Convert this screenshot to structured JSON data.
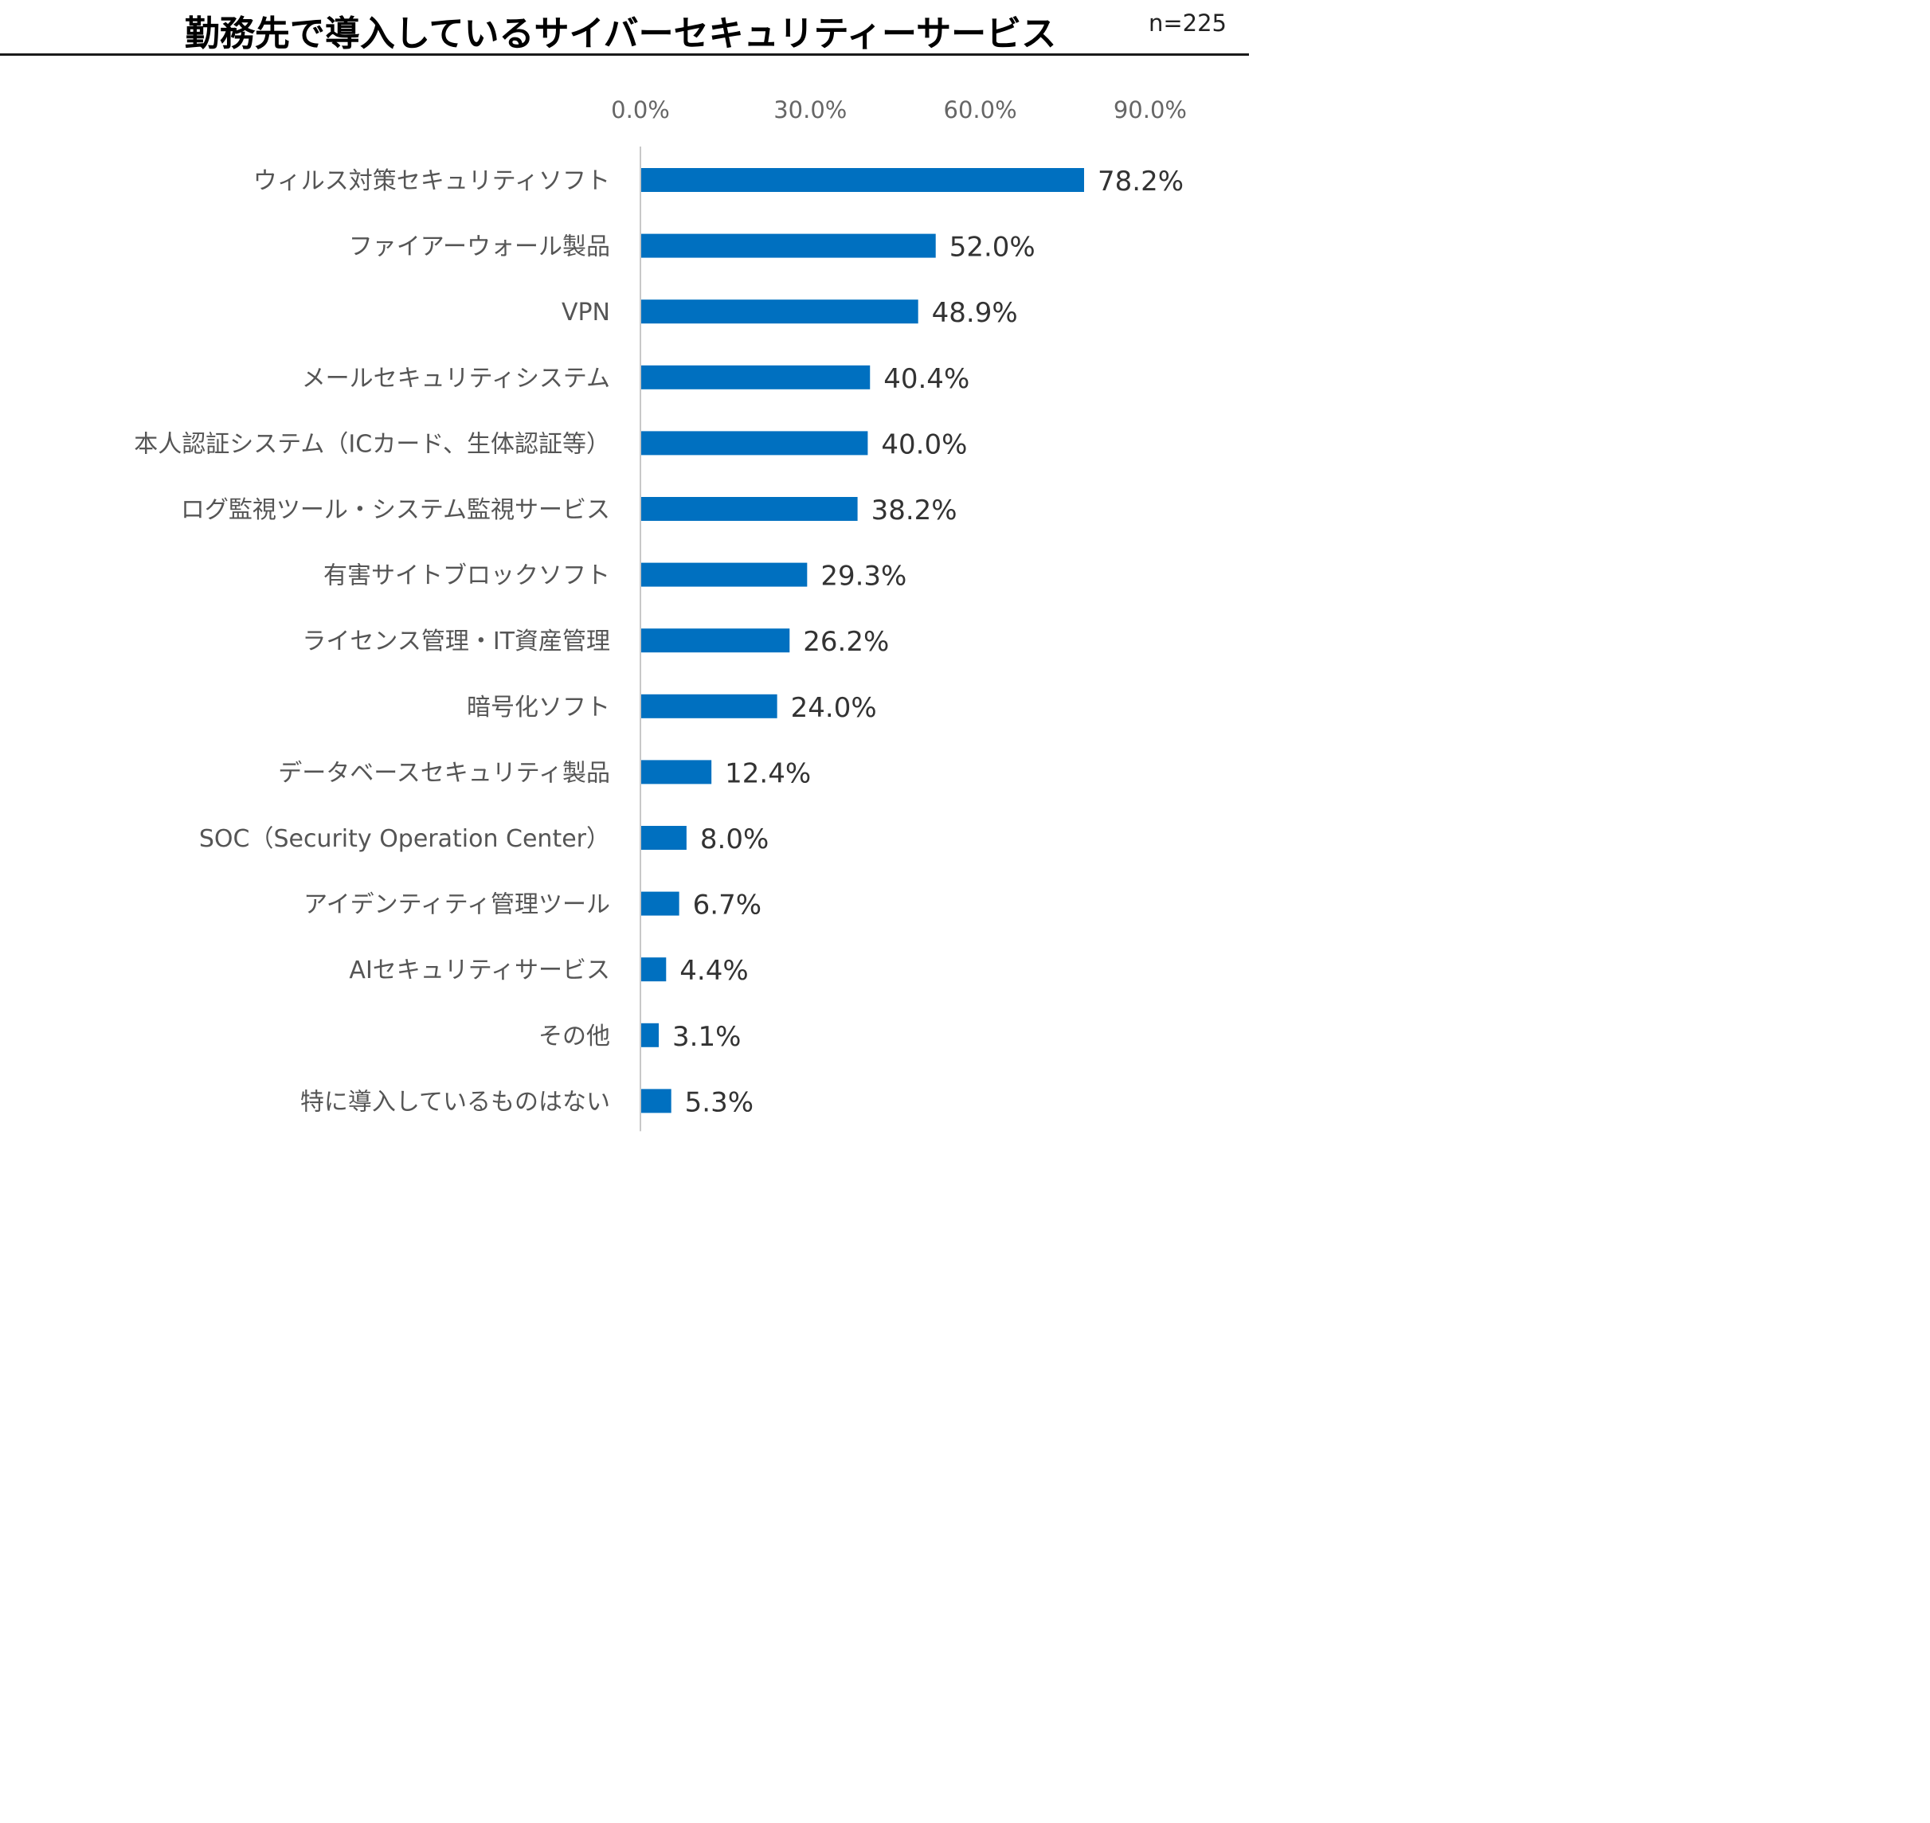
{
  "title": "勤務先で導入しているサイバーセキュリティーサービス",
  "sample_size": "n=225",
  "chart_data": {
    "type": "bar",
    "orientation": "horizontal",
    "title": "勤務先で導入しているサイバーセキュリティーサービス",
    "categories": [
      "ウィルス対策セキュリティソフト",
      "ファイアーウォール製品",
      "VPN",
      "メールセキュリティシステム",
      "本人認証システム（ICカード、生体認証等）",
      "ログ監視ツール・システム監視サービス",
      "有害サイトブロックソフト",
      "ライセンス管理・IT資産管理",
      "暗号化ソフト",
      "データベースセキュリティ製品",
      "SOC（Security Operation Center）",
      "アイデンティティ管理ツール",
      "AIセキュリティサービス",
      "その他",
      "特に導入しているものはない"
    ],
    "values": [
      78.2,
      52.0,
      48.9,
      40.4,
      40.0,
      38.2,
      29.3,
      26.2,
      24.0,
      12.4,
      8.0,
      6.7,
      4.4,
      3.1,
      5.3
    ],
    "value_labels": [
      "78.2%",
      "52.0%",
      "48.9%",
      "40.4%",
      "40.0%",
      "38.2%",
      "29.3%",
      "26.2%",
      "24.0%",
      "12.4%",
      "8.0%",
      "6.7%",
      "4.4%",
      "3.1%",
      "5.3%"
    ],
    "x_ticks": [
      "0.0%",
      "30.0%",
      "60.0%",
      "90.0%"
    ],
    "x_tick_values": [
      0,
      30,
      60,
      90
    ],
    "xlim": [
      0,
      90
    ],
    "axis_position": "top",
    "grid": false,
    "legend": "none",
    "bar_color": "#0070C0",
    "axis_color": "#C8C8C8"
  }
}
